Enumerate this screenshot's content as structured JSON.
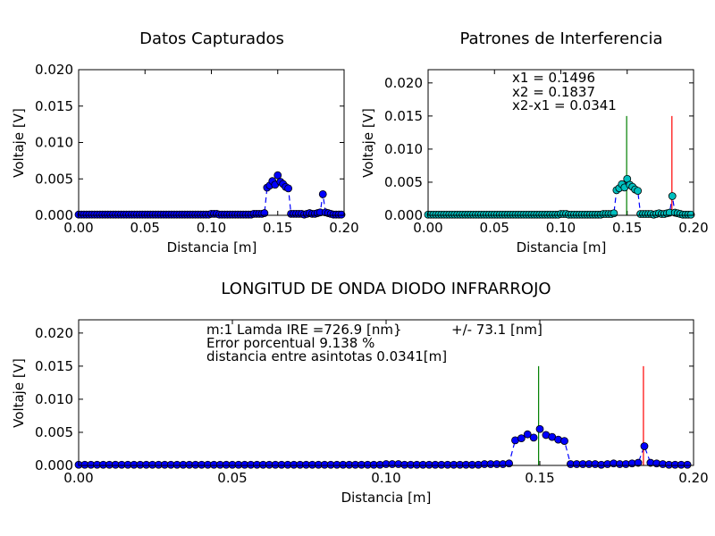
{
  "chart_data": [
    {
      "type": "line",
      "title": "Datos Capturados",
      "xlabel": "Distancia [m]",
      "ylabel": "Voltaje [V]",
      "xlim": [
        0,
        0.2
      ],
      "ylim": [
        0,
        0.02
      ],
      "xticks": [
        "0.00",
        "0.05",
        "0.10",
        "0.15",
        "0.20"
      ],
      "yticks": [
        "0.000",
        "0.005",
        "0.010",
        "0.015",
        "0.020"
      ],
      "grid": false,
      "colors": {
        "line": "#0000ff",
        "marker": "#0000ff"
      },
      "series": [
        {
          "x": [
            0.0,
            0.002,
            0.004,
            0.006,
            0.008,
            0.01,
            0.012,
            0.014,
            0.016,
            0.018,
            0.02,
            0.022,
            0.024,
            0.026,
            0.028,
            0.03,
            0.032,
            0.034,
            0.036,
            0.038,
            0.04,
            0.042,
            0.044,
            0.046,
            0.048,
            0.05,
            0.052,
            0.054,
            0.056,
            0.058,
            0.06,
            0.062,
            0.064,
            0.066,
            0.068,
            0.07,
            0.072,
            0.074,
            0.076,
            0.078,
            0.08,
            0.082,
            0.084,
            0.086,
            0.088,
            0.09,
            0.092,
            0.094,
            0.096,
            0.098,
            0.1,
            0.102,
            0.104,
            0.106,
            0.108,
            0.11,
            0.112,
            0.114,
            0.116,
            0.118,
            0.12,
            0.122,
            0.124,
            0.126,
            0.128,
            0.13,
            0.132,
            0.134,
            0.136,
            0.138,
            0.14,
            0.142,
            0.144,
            0.146,
            0.148,
            0.15,
            0.152,
            0.154,
            0.156,
            0.158,
            0.16,
            0.162,
            0.164,
            0.166,
            0.168,
            0.17,
            0.172,
            0.174,
            0.176,
            0.178,
            0.18,
            0.182,
            0.184,
            0.186,
            0.188,
            0.19,
            0.192,
            0.194,
            0.196,
            0.198
          ],
          "y": [
            0.0001,
            0.0001,
            0.0001,
            0.0001,
            0.0001,
            0.0001,
            0.0001,
            0.0001,
            0.0001,
            0.0001,
            0.0001,
            0.0001,
            0.0001,
            0.0001,
            0.0001,
            0.0001,
            0.0001,
            0.0001,
            0.0001,
            0.0001,
            0.0001,
            0.0001,
            0.0001,
            0.0001,
            0.0001,
            0.0001,
            0.0001,
            0.0001,
            0.0001,
            0.0001,
            0.0001,
            0.0001,
            0.0001,
            0.0001,
            0.0001,
            0.0001,
            0.0001,
            0.0001,
            0.0001,
            0.0001,
            0.0001,
            0.0001,
            0.0001,
            0.0001,
            0.0001,
            0.0001,
            0.0001,
            0.0001,
            0.0001,
            0.0001,
            0.0002,
            0.0002,
            0.0002,
            0.0001,
            0.0001,
            0.0001,
            0.0001,
            0.0001,
            0.0001,
            0.0001,
            0.0001,
            0.0001,
            0.0001,
            0.0001,
            0.0001,
            0.0001,
            0.0002,
            0.0002,
            0.0002,
            0.0002,
            0.0003,
            0.0038,
            0.0041,
            0.0047,
            0.0042,
            0.0055,
            0.0046,
            0.0043,
            0.0039,
            0.0037,
            0.0002,
            0.0002,
            0.0002,
            0.0002,
            0.0002,
            0.0001,
            0.0002,
            0.0003,
            0.0002,
            0.0002,
            0.0003,
            0.0004,
            0.0029,
            0.0004,
            0.0003,
            0.0002,
            0.0001,
            0.0001,
            0.0001,
            0.0001
          ]
        }
      ]
    },
    {
      "type": "line",
      "title": "Patrones de Interferencia",
      "xlabel": "Distancia [m]",
      "ylabel": "Voltaje [V]",
      "xlim": [
        0,
        0.2
      ],
      "ylim": [
        0,
        0.022
      ],
      "xticks": [
        "0.00",
        "0.05",
        "0.10",
        "0.15",
        "0.20"
      ],
      "yticks": [
        "0.000",
        "0.005",
        "0.010",
        "0.015",
        "0.020"
      ],
      "grid": false,
      "colors": {
        "line": "#0000ff",
        "marker": "#00bfbf",
        "line_x1": "#008000",
        "line_x2": "#ff0000"
      },
      "annotations": [
        "x1 = 0.1496",
        "x2 = 0.1837",
        "x2-x1 = 0.0341"
      ],
      "vlines": [
        {
          "x": 0.1496,
          "ymax": 0.015
        },
        {
          "x": 0.1837,
          "ymax": 0.015
        }
      ]
    },
    {
      "type": "line",
      "title": "LONGITUD DE ONDA DIODO INFRARROJO",
      "xlabel": "Distancia [m]",
      "ylabel": "Voltaje [V]",
      "xlim": [
        0,
        0.2
      ],
      "ylim": [
        0,
        0.022
      ],
      "xticks": [
        "0.00",
        "0.05",
        "0.10",
        "0.15",
        "0.20"
      ],
      "yticks": [
        "0.000",
        "0.005",
        "0.010",
        "0.015",
        "0.020"
      ],
      "grid": false,
      "colors": {
        "line": "#0000ff",
        "marker": "#0000ff",
        "line_x1": "#008000",
        "line_x2": "#ff0000"
      },
      "annotations": [
        "m:1 Lamda IRE =726.9 [nm}",
        "+/- 73.1 [nm]",
        "Error porcentual  9.138 %",
        "distancia entre asintotas 0.0341[m]"
      ],
      "vlines": [
        {
          "x": 0.1496,
          "ymax": 0.015
        },
        {
          "x": 0.1837,
          "ymax": 0.015
        }
      ]
    }
  ]
}
